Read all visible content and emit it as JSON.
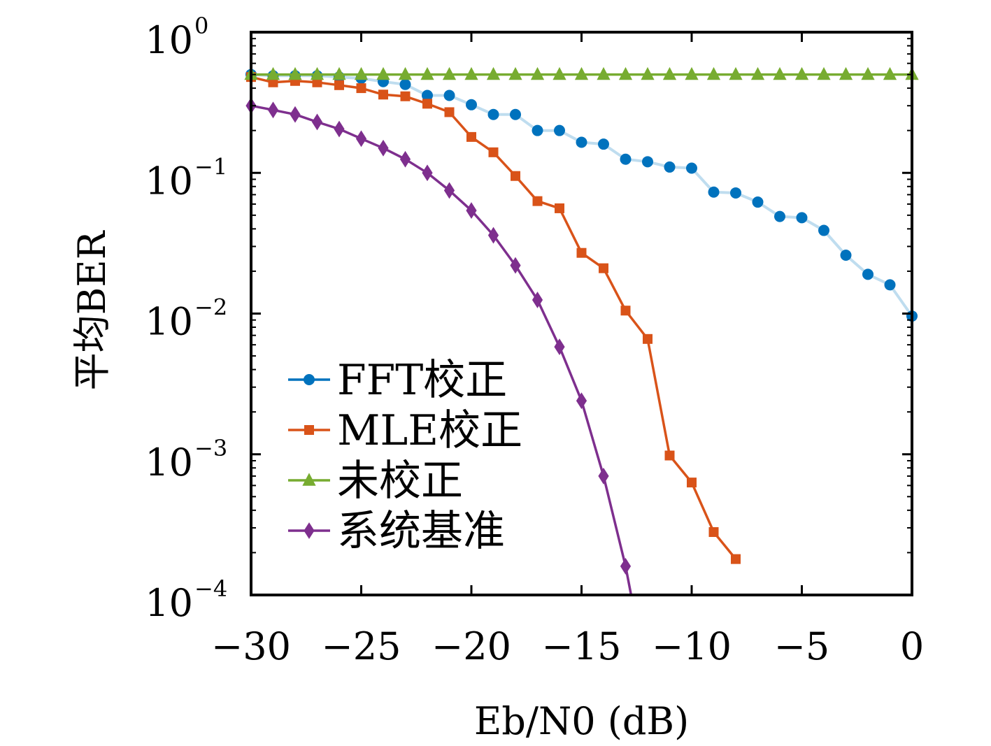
{
  "chart_data": {
    "type": "line",
    "title": "",
    "xlabel": "Eb/N0 (dB)",
    "ylabel": "平均BER",
    "xlim": [
      -30,
      0
    ],
    "ylim": [
      0.0001,
      1
    ],
    "yscale": "log",
    "grid": false,
    "legend_position": "lower-left",
    "x_ticks": [
      {
        "value": -30,
        "label": "−30"
      },
      {
        "value": -25,
        "label": "−25"
      },
      {
        "value": -20,
        "label": "−20"
      },
      {
        "value": -15,
        "label": "−15"
      },
      {
        "value": -10,
        "label": "−10"
      },
      {
        "value": -5,
        "label": "−5"
      },
      {
        "value": 0,
        "label": "0"
      }
    ],
    "y_ticks": [
      {
        "value": 1,
        "base": "10",
        "exp": "0"
      },
      {
        "value": 0.1,
        "base": "10",
        "exp": "−1"
      },
      {
        "value": 0.01,
        "base": "10",
        "exp": "−2"
      },
      {
        "value": 0.001,
        "base": "10",
        "exp": "−3"
      },
      {
        "value": 0.0001,
        "base": "10",
        "exp": "−4"
      }
    ],
    "x": [
      -30,
      -29,
      -28,
      -27,
      -26,
      -25,
      -24,
      -23,
      -22,
      -21,
      -20,
      -19,
      -18,
      -17,
      -16,
      -15,
      -14,
      -13,
      -12,
      -11,
      -10,
      -9,
      -8,
      -7,
      -6,
      -5,
      -4,
      -3,
      -2,
      -1,
      0
    ],
    "series": [
      {
        "name": "FFT校正",
        "color": "#0072BD",
        "line_color": "#BFDDEF",
        "marker": "circle",
        "values": [
          0.5,
          0.49,
          0.49,
          0.49,
          0.48,
          0.47,
          0.445,
          0.425,
          0.355,
          0.355,
          0.305,
          0.26,
          0.26,
          0.2,
          0.2,
          0.165,
          0.16,
          0.125,
          0.12,
          0.11,
          0.108,
          0.073,
          0.072,
          0.062,
          0.049,
          0.048,
          0.039,
          0.026,
          0.019,
          0.016,
          0.0096
        ]
      },
      {
        "name": "MLE校正",
        "color": "#D95319",
        "line_color": "#D95319",
        "marker": "square",
        "values": [
          0.48,
          0.44,
          0.45,
          0.44,
          0.42,
          0.4,
          0.36,
          0.35,
          0.31,
          0.27,
          0.18,
          0.14,
          0.095,
          0.063,
          0.056,
          0.027,
          0.021,
          0.0105,
          0.0066,
          0.00098,
          0.00063,
          0.00028,
          0.00018,
          null,
          null,
          null,
          null,
          null,
          null,
          null,
          null
        ]
      },
      {
        "name": "未校正",
        "color": "#77AC30",
        "line_color": "#77AC30",
        "marker": "triangle",
        "values": [
          0.5,
          0.5,
          0.5,
          0.5,
          0.5,
          0.5,
          0.5,
          0.5,
          0.5,
          0.5,
          0.5,
          0.5,
          0.5,
          0.5,
          0.5,
          0.5,
          0.5,
          0.5,
          0.5,
          0.5,
          0.5,
          0.5,
          0.5,
          0.5,
          0.5,
          0.5,
          0.5,
          0.5,
          0.5,
          0.5,
          0.5
        ]
      },
      {
        "name": "系统基准",
        "color": "#7E2F8E",
        "line_color": "#7E2F8E",
        "marker": "diamond",
        "values": [
          0.3,
          0.28,
          0.26,
          0.23,
          0.205,
          0.175,
          0.15,
          0.125,
          0.1,
          0.075,
          0.054,
          0.036,
          0.022,
          0.0125,
          0.0058,
          0.0024,
          0.0007,
          0.00016,
          null,
          null,
          null,
          null,
          null,
          null,
          null,
          null,
          null,
          null,
          null,
          null,
          null
        ],
        "tail_to": {
          "x": -12.75,
          "value": 0.0001
        }
      }
    ]
  }
}
